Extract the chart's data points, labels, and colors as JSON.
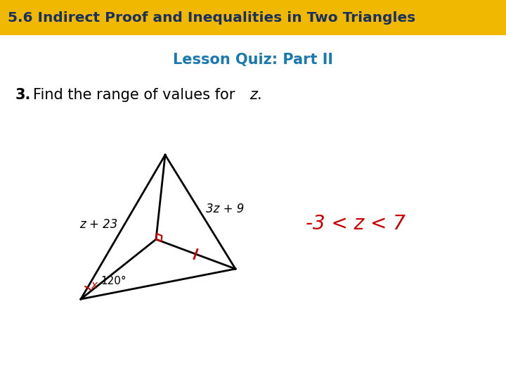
{
  "header_text": "5.6 Indirect Proof and Inequalities in Two Triangles",
  "header_bg": "#F0B800",
  "header_text_color": "#1A3060",
  "subtitle": "Lesson Quiz: Part II",
  "subtitle_color": "#1A7AAF",
  "question_number": "3.",
  "question_text": "Find the range of values for ",
  "question_italic_z": "z",
  "question_period": ".",
  "answer_text": "-3 < z < 7",
  "answer_color": "#CC0000",
  "label_left": "z + 23",
  "label_right": "3z + 9",
  "angle_label": "120°",
  "background_color": "#FFFFFF",
  "triangle_color": "#000000",
  "red_color": "#CC0000"
}
